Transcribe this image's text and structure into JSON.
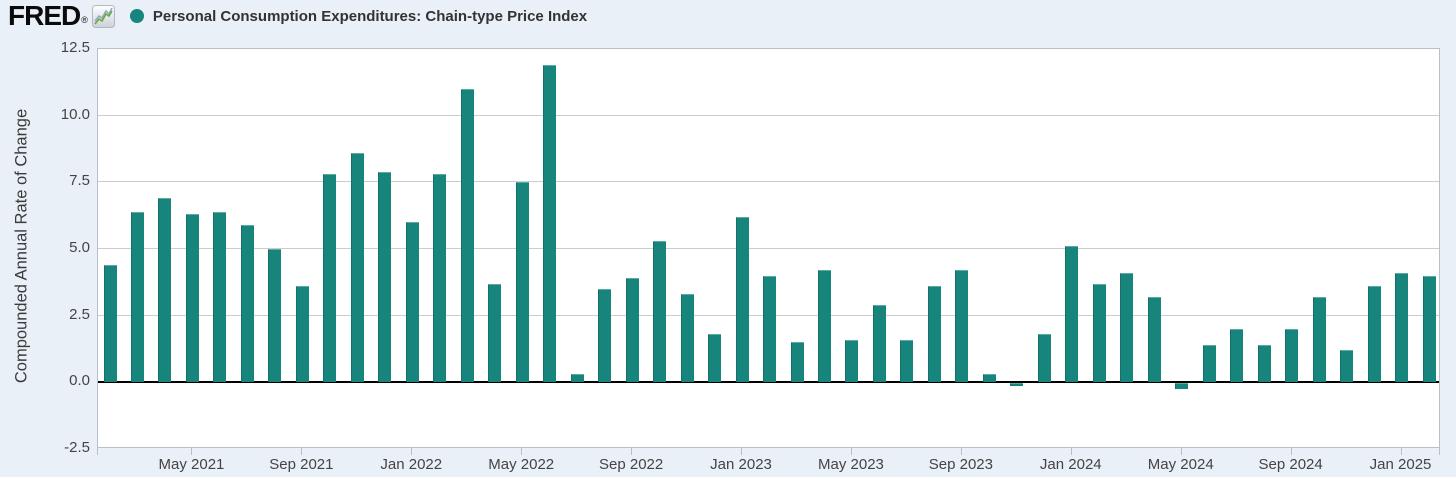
{
  "header": {
    "logo_text": "FRED",
    "registered_mark": "®",
    "legend_label": "Personal Consumption Expenditures: Chain-type Price Index"
  },
  "colors": {
    "series": "#17857c",
    "background": "#e9f0f8",
    "plot_background": "#ffffff",
    "grid": "#cccccc",
    "plot_border": "#b9bfc7",
    "zero_line": "#000000",
    "axis_text": "#444444",
    "logo_icon_green": "#69aa3c",
    "logo_icon_blue": "#8ea8c4"
  },
  "y_axis": {
    "title": "Compounded Annual Rate of Change",
    "ticks": [
      12.5,
      10.0,
      7.5,
      5.0,
      2.5,
      0.0,
      -2.5
    ]
  },
  "x_axis": {
    "ticks": [
      {
        "label": "May 2021",
        "month_index": 3
      },
      {
        "label": "Sep 2021",
        "month_index": 7
      },
      {
        "label": "Jan 2022",
        "month_index": 11
      },
      {
        "label": "May 2022",
        "month_index": 15
      },
      {
        "label": "Sep 2022",
        "month_index": 19
      },
      {
        "label": "Jan 2023",
        "month_index": 23
      },
      {
        "label": "May 2023",
        "month_index": 27
      },
      {
        "label": "Sep 2023",
        "month_index": 31
      },
      {
        "label": "Jan 2024",
        "month_index": 35
      },
      {
        "label": "May 2024",
        "month_index": 39
      },
      {
        "label": "Sep 2024",
        "month_index": 43
      },
      {
        "label": "Jan 2025",
        "month_index": 47
      }
    ]
  },
  "chart_data": {
    "type": "bar",
    "title": "Personal Consumption Expenditures: Chain-type Price Index",
    "ylabel": "Compounded Annual Rate of Change",
    "ylim": [
      -2.5,
      12.5
    ],
    "grid": true,
    "legend_position": "top",
    "bar_color": "#17857c",
    "categories": [
      "Feb 2021",
      "Mar 2021",
      "Apr 2021",
      "May 2021",
      "Jun 2021",
      "Jul 2021",
      "Aug 2021",
      "Sep 2021",
      "Oct 2021",
      "Nov 2021",
      "Dec 2021",
      "Jan 2022",
      "Feb 2022",
      "Mar 2022",
      "Apr 2022",
      "May 2022",
      "Jun 2022",
      "Jul 2022",
      "Aug 2022",
      "Sep 2022",
      "Oct 2022",
      "Nov 2022",
      "Dec 2022",
      "Jan 2023",
      "Feb 2023",
      "Mar 2023",
      "Apr 2023",
      "May 2023",
      "Jun 2023",
      "Jul 2023",
      "Aug 2023",
      "Sep 2023",
      "Oct 2023",
      "Nov 2023",
      "Dec 2023",
      "Jan 2024",
      "Feb 2024",
      "Mar 2024",
      "Apr 2024",
      "May 2024",
      "Jun 2024",
      "Jul 2024",
      "Aug 2024",
      "Sep 2024",
      "Oct 2024",
      "Nov 2024",
      "Dec 2024",
      "Jan 2025",
      "Feb 2025"
    ],
    "values": [
      4.4,
      6.4,
      6.9,
      6.3,
      6.4,
      5.9,
      5.0,
      3.6,
      7.8,
      8.6,
      7.9,
      6.0,
      7.8,
      11.0,
      3.7,
      7.5,
      11.9,
      0.3,
      3.5,
      3.9,
      5.3,
      3.3,
      1.8,
      6.2,
      4.0,
      1.5,
      4.2,
      1.6,
      2.9,
      1.6,
      3.6,
      4.2,
      0.3,
      -0.1,
      1.8,
      5.1,
      3.7,
      4.1,
      3.2,
      -0.2,
      1.4,
      2.0,
      1.4,
      2.0,
      3.2,
      1.2,
      3.6,
      4.1,
      4.0
    ]
  }
}
